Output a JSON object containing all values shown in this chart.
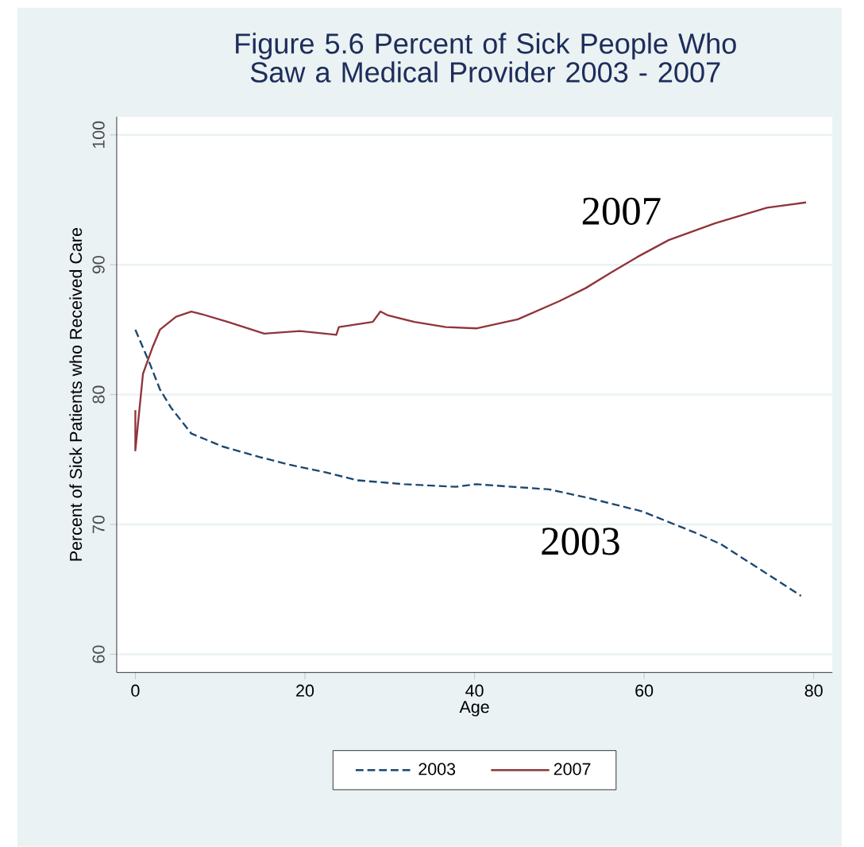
{
  "chart_data": {
    "type": "line",
    "title": "Figure 5.6  Percent of Sick People Who Saw a Medical Provider 2003 - 2007",
    "xlabel": "Age",
    "ylabel": "Percent of Sick Patients who Received Care",
    "xlim": [
      -2.2,
      82.2
    ],
    "ylim": [
      58.6,
      101.4
    ],
    "xticks": [
      0,
      20,
      40,
      60,
      80
    ],
    "yticks": [
      60,
      70,
      80,
      90,
      100
    ],
    "grid": "y",
    "legend": "bottom",
    "series": [
      {
        "name": "2003",
        "color": "#1a476f",
        "line_style": "dashed",
        "x": [
          0,
          1.7,
          2.9,
          4.2,
          6.6,
          10.3,
          14.6,
          18.2,
          22.5,
          26.2,
          31.7,
          37.8,
          40.2,
          48.8,
          53.7,
          59.8,
          65.9,
          69,
          73.3,
          78.5
        ],
        "values": [
          85.0,
          82.4,
          80.4,
          79.0,
          77.0,
          76.0,
          75.2,
          74.6,
          74.0,
          73.4,
          73.1,
          72.9,
          73.1,
          72.7,
          72.0,
          71.0,
          69.4,
          68.5,
          66.7,
          64.5
        ]
      },
      {
        "name": "2007",
        "color": "#90353b",
        "line_style": "solid",
        "x": [
          0,
          0,
          0.9,
          2,
          2.9,
          4.8,
          6.6,
          7.8,
          10.9,
          15.2,
          19.4,
          23.7,
          24,
          28,
          28.9,
          29.8,
          32.9,
          36.6,
          40.2,
          45.1,
          50,
          53.1,
          56.1,
          59.2,
          62.9,
          68.4,
          74.5,
          79.1
        ],
        "values": [
          78.8,
          75.7,
          81.6,
          83.6,
          85.0,
          86.0,
          86.4,
          86.2,
          85.6,
          84.7,
          84.9,
          84.6,
          85.2,
          85.6,
          86.4,
          86.1,
          85.6,
          85.2,
          85.1,
          85.8,
          87.2,
          88.2,
          89.4,
          90.6,
          91.9,
          93.2,
          94.4,
          94.8
        ]
      }
    ],
    "annotations": [
      "2007",
      "2003"
    ]
  }
}
